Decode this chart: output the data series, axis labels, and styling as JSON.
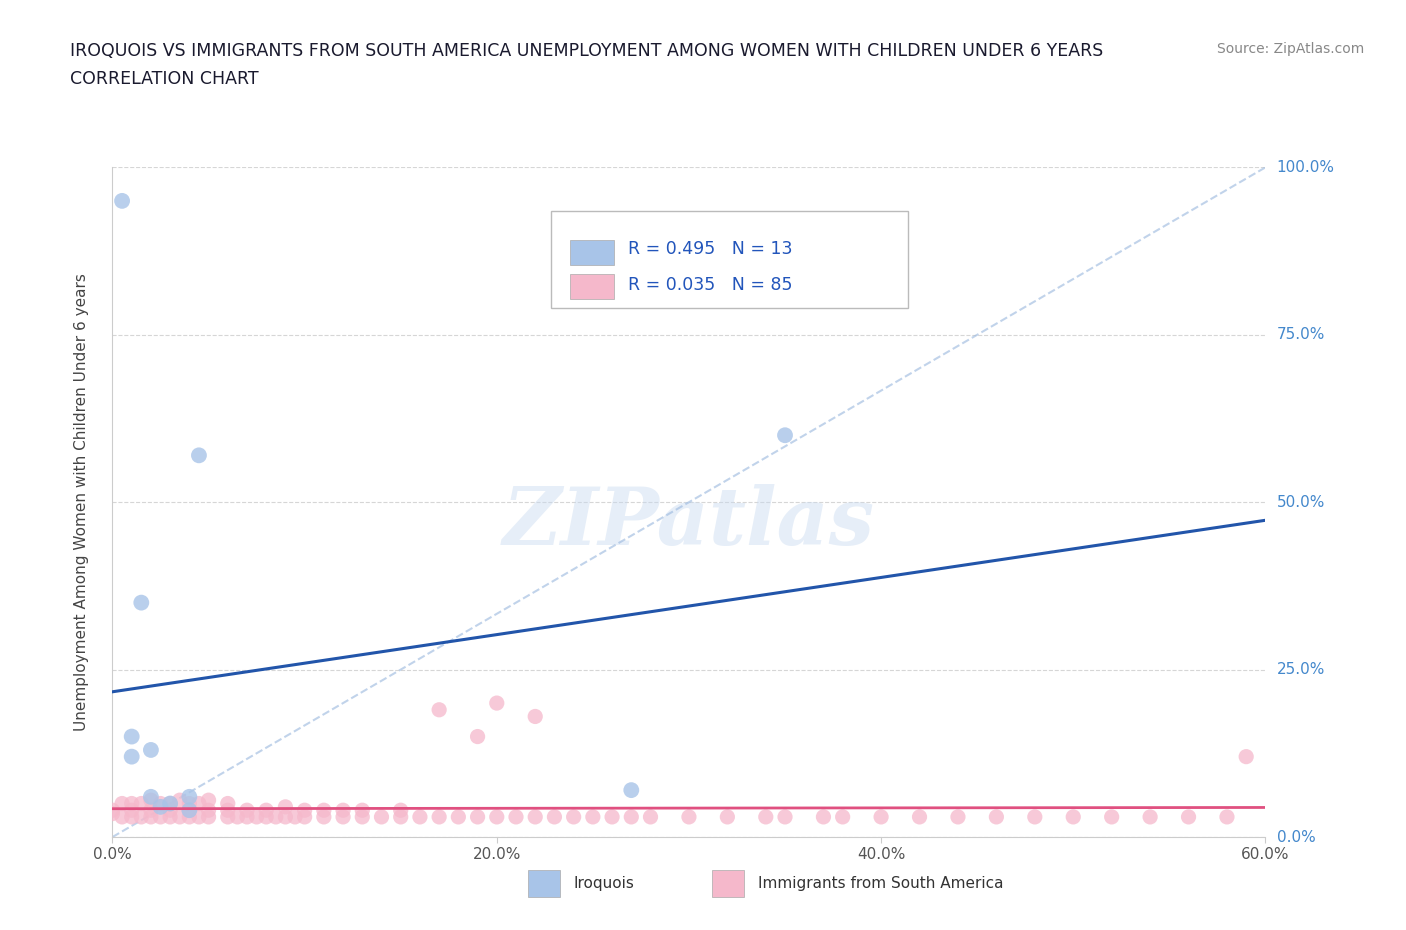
{
  "title_line1": "IROQUOIS VS IMMIGRANTS FROM SOUTH AMERICA UNEMPLOYMENT AMONG WOMEN WITH CHILDREN UNDER 6 YEARS",
  "title_line2": "CORRELATION CHART",
  "source": "Source: ZipAtlas.com",
  "ylabel": "Unemployment Among Women with Children Under 6 years",
  "xlim": [
    0.0,
    0.6
  ],
  "ylim": [
    0.0,
    1.0
  ],
  "xtick_labels": [
    "0.0%",
    "",
    "20.0%",
    "",
    "40.0%",
    "",
    "60.0%"
  ],
  "xtick_vals": [
    0.0,
    0.1,
    0.2,
    0.3,
    0.4,
    0.5,
    0.6
  ],
  "ytick_labels": [
    "0.0%",
    "25.0%",
    "50.0%",
    "75.0%",
    "100.0%"
  ],
  "ytick_vals": [
    0.0,
    0.25,
    0.5,
    0.75,
    1.0
  ],
  "iroquois_x": [
    0.005,
    0.01,
    0.01,
    0.015,
    0.02,
    0.02,
    0.025,
    0.03,
    0.04,
    0.04,
    0.045,
    0.27,
    0.35
  ],
  "iroquois_y": [
    0.95,
    0.15,
    0.12,
    0.35,
    0.13,
    0.06,
    0.045,
    0.05,
    0.04,
    0.06,
    0.57,
    0.07,
    0.6
  ],
  "immigrants_x": [
    0.0,
    0.0,
    0.005,
    0.005,
    0.01,
    0.01,
    0.01,
    0.015,
    0.015,
    0.02,
    0.02,
    0.02,
    0.025,
    0.025,
    0.03,
    0.03,
    0.03,
    0.035,
    0.035,
    0.04,
    0.04,
    0.04,
    0.045,
    0.045,
    0.05,
    0.05,
    0.05,
    0.06,
    0.06,
    0.06,
    0.065,
    0.07,
    0.07,
    0.075,
    0.08,
    0.08,
    0.085,
    0.09,
    0.09,
    0.095,
    0.1,
    0.1,
    0.11,
    0.11,
    0.12,
    0.12,
    0.13,
    0.13,
    0.14,
    0.15,
    0.15,
    0.16,
    0.17,
    0.18,
    0.19,
    0.2,
    0.21,
    0.22,
    0.23,
    0.24,
    0.25,
    0.26,
    0.27,
    0.28,
    0.3,
    0.32,
    0.34,
    0.35,
    0.37,
    0.38,
    0.4,
    0.42,
    0.44,
    0.46,
    0.48,
    0.5,
    0.52,
    0.54,
    0.56,
    0.58,
    0.59,
    0.2,
    0.22,
    0.17,
    0.19
  ],
  "immigrants_y": [
    0.035,
    0.04,
    0.03,
    0.05,
    0.03,
    0.04,
    0.05,
    0.03,
    0.05,
    0.03,
    0.04,
    0.055,
    0.03,
    0.05,
    0.03,
    0.04,
    0.05,
    0.03,
    0.055,
    0.03,
    0.04,
    0.05,
    0.03,
    0.05,
    0.03,
    0.04,
    0.055,
    0.03,
    0.04,
    0.05,
    0.03,
    0.03,
    0.04,
    0.03,
    0.03,
    0.04,
    0.03,
    0.03,
    0.045,
    0.03,
    0.03,
    0.04,
    0.03,
    0.04,
    0.03,
    0.04,
    0.03,
    0.04,
    0.03,
    0.03,
    0.04,
    0.03,
    0.03,
    0.03,
    0.03,
    0.03,
    0.03,
    0.03,
    0.03,
    0.03,
    0.03,
    0.03,
    0.03,
    0.03,
    0.03,
    0.03,
    0.03,
    0.03,
    0.03,
    0.03,
    0.03,
    0.03,
    0.03,
    0.03,
    0.03,
    0.03,
    0.03,
    0.03,
    0.03,
    0.03,
    0.12,
    0.2,
    0.18,
    0.19,
    0.15
  ],
  "blue_color": "#a8c4e8",
  "pink_color": "#f5b8cb",
  "blue_line_color": "#2255aa",
  "pink_line_color": "#e05080",
  "diag_line_color": "#a0bce0",
  "R_iroquois": 0.495,
  "N_iroquois": 13,
  "R_immigrants": 0.035,
  "N_immigrants": 85,
  "legend_label_1": "Iroquois",
  "legend_label_2": "Immigrants from South America",
  "background_color": "#ffffff",
  "watermark": "ZIPatlas"
}
